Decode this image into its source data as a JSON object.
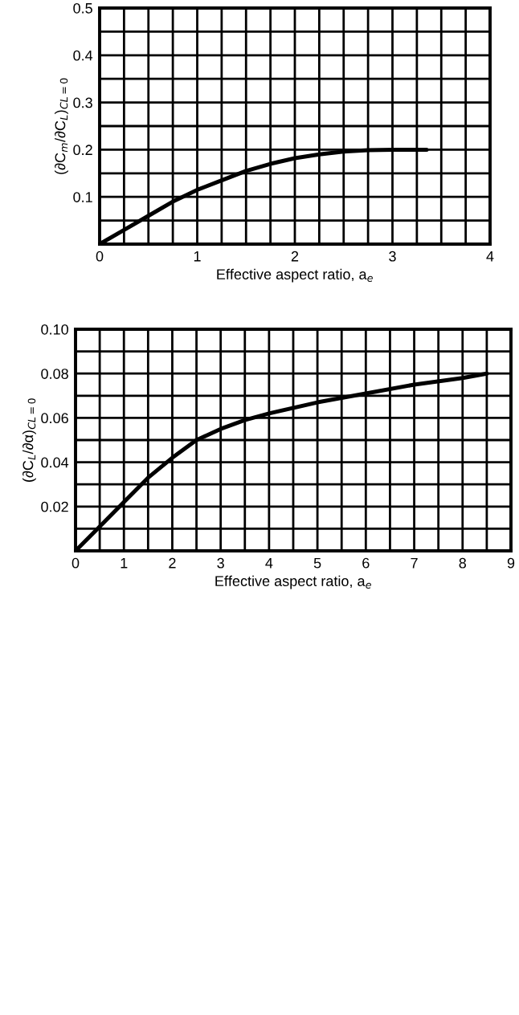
{
  "chart_data": [
    {
      "type": "line",
      "xlabel": "Effective aspect ratio, a$_{e}$",
      "ylabel": "(∂C$_{m}$/∂C$_{L}$)$_{CL=0}$",
      "x": [
        0,
        0.25,
        0.5,
        0.75,
        1,
        1.25,
        1.5,
        1.75,
        2,
        2.25,
        2.5,
        2.75,
        3,
        3.35
      ],
      "series": [
        {
          "color": "#000000",
          "values": [
            0,
            0.03,
            0.06,
            0.09,
            0.115,
            0.135,
            0.155,
            0.17,
            0.182,
            0.19,
            0.196,
            0.199,
            0.2,
            0.2
          ]
        }
      ],
      "xlim": [
        0,
        4
      ],
      "ylim": [
        0,
        0.5
      ],
      "xticks": [
        0,
        {
          "value": 0.25,
          "label": null
        },
        {
          "value": 0.5,
          "label": null
        },
        {
          "value": 0.75,
          "label": null
        },
        1,
        {
          "value": 1.25,
          "label": null
        },
        {
          "value": 1.5,
          "label": null
        },
        {
          "value": 1.75,
          "label": null
        },
        2,
        {
          "value": 2.25,
          "label": null
        },
        {
          "value": 2.5,
          "label": null
        },
        {
          "value": 2.75,
          "label": null
        },
        3,
        {
          "value": 3.25,
          "label": null
        },
        {
          "value": 3.5,
          "label": null
        },
        {
          "value": 3.75,
          "label": null
        },
        4
      ],
      "yticks": [
        {
          "value": 0.05,
          "label": null
        },
        0.1,
        {
          "value": 0.15,
          "label": null
        },
        0.2,
        {
          "value": 0.25,
          "label": null
        },
        0.3,
        {
          "value": 0.35,
          "label": null
        },
        0.4,
        {
          "value": 0.45,
          "label": null
        },
        0.5
      ],
      "grid": true,
      "line_style": "solid",
      "legend": false
    },
    {
      "type": "line",
      "xlabel": "Effective aspect ratio, a$_{e}$",
      "ylabel": "(∂C$_{L}$/∂α)$_{CL=0}$",
      "x": [
        0,
        0.5,
        1,
        1.5,
        2,
        2.5,
        3,
        3.5,
        4,
        5,
        6,
        7,
        8,
        8.5
      ],
      "series": [
        {
          "color": "#000000",
          "values": [
            0,
            0.011,
            0.022,
            0.033,
            0.042,
            0.05,
            0.055,
            0.059,
            0.062,
            0.067,
            0.071,
            0.075,
            0.078,
            0.08
          ]
        }
      ],
      "xlim": [
        0,
        9
      ],
      "ylim": [
        0,
        0.1
      ],
      "xticks": [
        0,
        {
          "value": 0.5,
          "label": null
        },
        1,
        {
          "value": 1.5,
          "label": null
        },
        2,
        {
          "value": 2.5,
          "label": null
        },
        3,
        {
          "value": 3.5,
          "label": null
        },
        4,
        {
          "value": 4.5,
          "label": null
        },
        5,
        {
          "value": 5.5,
          "label": null
        },
        6,
        {
          "value": 6.5,
          "label": null
        },
        7,
        {
          "value": 7.5,
          "label": null
        },
        8,
        {
          "value": 8.5,
          "label": null
        },
        9
      ],
      "yticks": [
        {
          "value": 0.01,
          "label": null
        },
        0.02,
        {
          "value": 0.03,
          "label": null
        },
        0.04,
        {
          "value": 0.05,
          "label": null
        },
        0.06,
        {
          "value": 0.07,
          "label": null
        },
        0.08,
        {
          "value": 0.09,
          "label": null
        },
        {
          "value": 0.1,
          "label": "0.10"
        }
      ],
      "grid": true,
      "line_style": "solid",
      "legend": false
    }
  ]
}
